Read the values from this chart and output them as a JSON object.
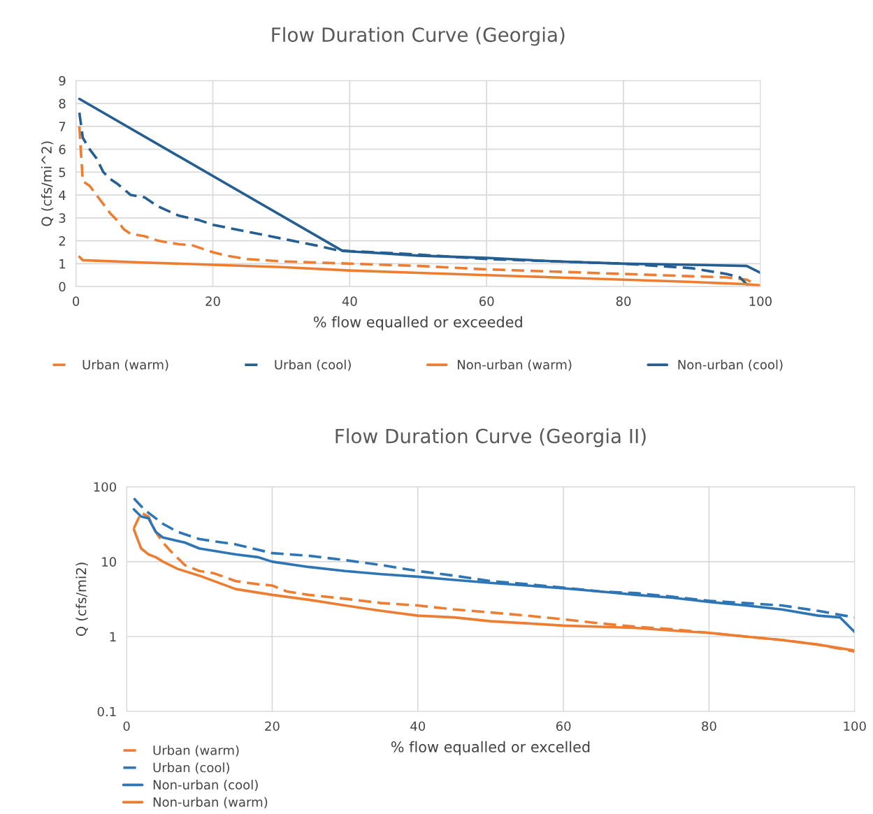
{
  "chart_data": [
    {
      "type": "line",
      "title": "Flow Duration Curve (Georgia)",
      "xlabel": "% flow equalled or exceeded",
      "ylabel": "Q (cfs/mi^2)",
      "xlim": [
        0,
        100
      ],
      "xticks": [
        0,
        20,
        40,
        60,
        80,
        100
      ],
      "ylim": [
        0,
        9
      ],
      "yticks": [
        0,
        1,
        2,
        3,
        4,
        5,
        6,
        7,
        8,
        9
      ],
      "grid": true,
      "legend": "bottom",
      "series": [
        {
          "name": "Urban (warm)",
          "color": "#ed7d31",
          "line_style": "dashed",
          "x": [
            0.5,
            0.7,
            1,
            2,
            3,
            4,
            5,
            6,
            7,
            8,
            10,
            12,
            15,
            17,
            20,
            22,
            25,
            30,
            40,
            50,
            60,
            70,
            80,
            90,
            95,
            98,
            100
          ],
          "values": [
            7.0,
            6.0,
            4.6,
            4.4,
            4.0,
            3.6,
            3.2,
            2.9,
            2.5,
            2.3,
            2.2,
            2.0,
            1.85,
            1.8,
            1.5,
            1.35,
            1.2,
            1.1,
            1.0,
            0.9,
            0.75,
            0.65,
            0.55,
            0.45,
            0.4,
            0.3,
            0.0
          ]
        },
        {
          "name": "Urban (cool)",
          "color": "#255e91",
          "line_style": "dashed",
          "x": [
            0.5,
            1,
            2,
            3,
            4,
            5,
            6,
            8,
            10,
            12,
            15,
            18,
            20,
            25,
            30,
            35,
            38,
            40,
            50,
            60,
            70,
            80,
            90,
            95,
            97,
            98,
            99
          ],
          "values": [
            7.6,
            6.5,
            6.0,
            5.6,
            5.0,
            4.7,
            4.5,
            4.0,
            3.9,
            3.5,
            3.1,
            2.9,
            2.7,
            2.4,
            2.1,
            1.8,
            1.6,
            1.55,
            1.4,
            1.2,
            1.1,
            1.0,
            0.8,
            0.55,
            0.4,
            0.1,
            0.0
          ]
        },
        {
          "name": "Non-urban (warm)",
          "color": "#ed7d31",
          "line_style": "solid",
          "x": [
            0.5,
            1,
            10,
            20,
            30,
            40,
            50,
            60,
            70,
            80,
            90,
            98,
            100
          ],
          "values": [
            1.3,
            1.15,
            1.05,
            0.95,
            0.85,
            0.7,
            0.6,
            0.5,
            0.4,
            0.3,
            0.2,
            0.1,
            0.05
          ]
        },
        {
          "name": "Non-urban (cool)",
          "color": "#255e91",
          "line_style": "solid",
          "x": [
            0.5,
            39,
            45,
            50,
            60,
            70,
            80,
            90,
            98,
            100
          ],
          "values": [
            8.2,
            1.55,
            1.45,
            1.35,
            1.25,
            1.1,
            1.0,
            0.95,
            0.9,
            0.6
          ]
        }
      ]
    },
    {
      "type": "line",
      "title": "Flow Duration Curve (Georgia II)",
      "xlabel": "% flow equalled or excelled",
      "ylabel": "Q (cfs/mi2)",
      "log": "y",
      "xlim": [
        0,
        100
      ],
      "xticks": [
        0,
        20,
        40,
        60,
        80,
        100
      ],
      "ylim": [
        0.1,
        100
      ],
      "yticks": [
        0.1,
        1,
        10,
        100
      ],
      "grid": true,
      "legend": "bottom",
      "series": [
        {
          "name": "Urban (warm)",
          "color": "#ed7d31",
          "line_style": "dashed",
          "x": [
            1,
            2,
            3,
            4,
            5,
            6,
            8,
            10,
            12,
            15,
            18,
            20,
            22,
            25,
            30,
            35,
            40,
            45,
            50,
            55,
            60,
            65,
            70,
            75,
            80,
            85,
            90,
            95,
            100
          ],
          "values": [
            28,
            45,
            40,
            25,
            18,
            14,
            9,
            7.5,
            7,
            5.5,
            5,
            4.8,
            4,
            3.6,
            3.2,
            2.8,
            2.6,
            2.3,
            2.1,
            1.9,
            1.7,
            1.5,
            1.35,
            1.25,
            1.12,
            1.0,
            0.9,
            0.78,
            0.63
          ]
        },
        {
          "name": "Urban (cool)",
          "color": "#2e75b6",
          "line_style": "dashed",
          "x": [
            1,
            2,
            3,
            5,
            7,
            10,
            15,
            20,
            25,
            30,
            35,
            40,
            45,
            50,
            55,
            60,
            65,
            70,
            75,
            80,
            85,
            90,
            95,
            100
          ],
          "values": [
            70,
            55,
            45,
            32,
            25,
            20,
            17,
            13,
            12,
            10.5,
            9,
            7.5,
            6.5,
            5.5,
            5,
            4.5,
            4,
            3.8,
            3.4,
            3,
            2.8,
            2.6,
            2.2,
            1.8
          ]
        },
        {
          "name": "Non-urban (cool)",
          "color": "#2e75b6",
          "line_style": "solid",
          "x": [
            1,
            2,
            3,
            4,
            5,
            8,
            10,
            15,
            18,
            20,
            25,
            30,
            35,
            40,
            45,
            50,
            55,
            60,
            65,
            70,
            75,
            80,
            85,
            90,
            95,
            98,
            100
          ],
          "values": [
            50,
            40,
            38,
            25,
            21,
            18,
            15,
            12.5,
            11.5,
            10,
            8.5,
            7.5,
            6.8,
            6.3,
            5.7,
            5.2,
            4.8,
            4.4,
            4,
            3.6,
            3.3,
            2.9,
            2.6,
            2.3,
            1.9,
            1.8,
            1.15
          ]
        },
        {
          "name": "Non-urban (warm)",
          "color": "#ed7d31",
          "line_style": "solid",
          "x": [
            1,
            1.5,
            2,
            3,
            4,
            5,
            7,
            10,
            12,
            15,
            20,
            25,
            30,
            35,
            40,
            45,
            50,
            55,
            60,
            65,
            70,
            75,
            80,
            85,
            90,
            95,
            100
          ],
          "values": [
            27,
            20,
            15,
            12.5,
            11.5,
            10,
            8,
            6.5,
            5.5,
            4.3,
            3.6,
            3.1,
            2.6,
            2.2,
            1.9,
            1.8,
            1.6,
            1.5,
            1.4,
            1.35,
            1.3,
            1.2,
            1.12,
            1.0,
            0.9,
            0.78,
            0.65
          ]
        }
      ]
    }
  ]
}
